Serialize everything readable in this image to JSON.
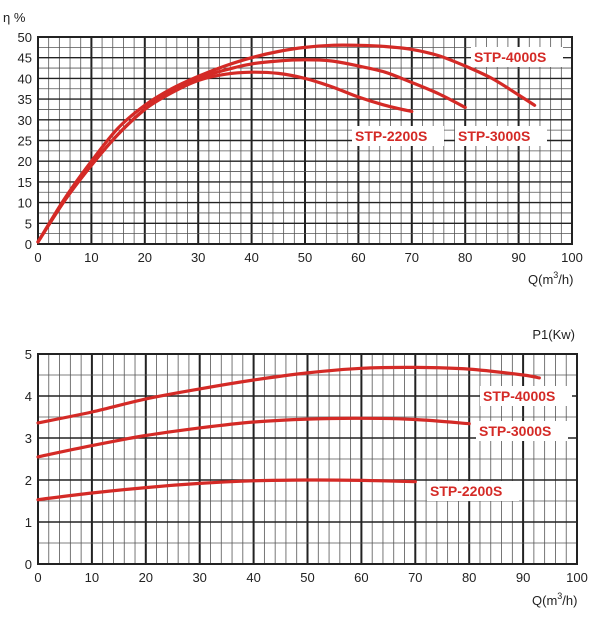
{
  "chart_data": [
    {
      "type": "line",
      "ylabel": "η %",
      "xlabel_main": "Q(m",
      "xlabel_sup": "3",
      "xlabel_end": "/h)",
      "xlim": [
        0,
        100
      ],
      "ylim": [
        0,
        50
      ],
      "xticks": [
        "0",
        "10",
        "20",
        "30",
        "40",
        "50",
        "60",
        "70",
        "80",
        "90",
        "100"
      ],
      "yticks": [
        "0",
        "5",
        "10",
        "15",
        "20",
        "25",
        "30",
        "35",
        "40",
        "45",
        "50"
      ],
      "grid": true,
      "color": "#d42a26",
      "series": [
        {
          "name": "STP-2200S",
          "x": [
            0,
            5,
            10,
            15,
            20,
            25,
            30,
            35,
            40,
            45,
            50,
            55,
            60,
            65,
            70
          ],
          "y": [
            0.5,
            10.5,
            19,
            26.5,
            32.5,
            36.5,
            39.5,
            41,
            41.5,
            41.2,
            40,
            38,
            35.5,
            33.5,
            32
          ]
        },
        {
          "name": "STP-3000S",
          "x": [
            0,
            5,
            10,
            15,
            20,
            25,
            30,
            35,
            40,
            45,
            50,
            55,
            60,
            65,
            70,
            75,
            80
          ],
          "y": [
            0.5,
            10.5,
            19,
            26.5,
            32.5,
            37,
            40,
            42,
            43.5,
            44.2,
            44.5,
            44.2,
            43,
            41.5,
            39,
            36.3,
            33
          ]
        },
        {
          "name": "STP-4000S",
          "x": [
            0,
            5,
            10,
            15,
            20,
            25,
            30,
            35,
            40,
            45,
            50,
            55,
            60,
            65,
            70,
            75,
            80,
            85,
            90,
            93
          ],
          "y": [
            0.5,
            11,
            20,
            28,
            33.5,
            37.5,
            40.5,
            43,
            45,
            46.5,
            47.5,
            48,
            48,
            47.7,
            47,
            45.5,
            43,
            40,
            36,
            33.5
          ]
        }
      ]
    },
    {
      "type": "line",
      "ylabel": "P1(Kw)",
      "xlabel_main": "Q(m",
      "xlabel_sup": "3",
      "xlabel_end": "/h)",
      "xlim": [
        0,
        100
      ],
      "ylim": [
        0,
        5
      ],
      "xticks": [
        "0",
        "10",
        "20",
        "30",
        "40",
        "50",
        "60",
        "70",
        "80",
        "90",
        "100"
      ],
      "yticks": [
        "0",
        "1",
        "2",
        "3",
        "4",
        "5"
      ],
      "grid": true,
      "color": "#d42a26",
      "series": [
        {
          "name": "STP-2200S",
          "x": [
            0,
            10,
            20,
            30,
            40,
            50,
            60,
            70
          ],
          "y": [
            1.53,
            1.69,
            1.82,
            1.92,
            1.98,
            2.0,
            1.99,
            1.96
          ]
        },
        {
          "name": "STP-3000S",
          "x": [
            0,
            10,
            20,
            30,
            40,
            50,
            60,
            70,
            80
          ],
          "y": [
            2.55,
            2.82,
            3.06,
            3.24,
            3.38,
            3.45,
            3.47,
            3.44,
            3.34
          ]
        },
        {
          "name": "STP-4000S",
          "x": [
            0,
            10,
            20,
            30,
            40,
            50,
            60,
            70,
            80,
            90,
            93
          ],
          "y": [
            3.36,
            3.62,
            3.93,
            4.17,
            4.38,
            4.55,
            4.66,
            4.68,
            4.64,
            4.5,
            4.43
          ]
        }
      ]
    }
  ]
}
